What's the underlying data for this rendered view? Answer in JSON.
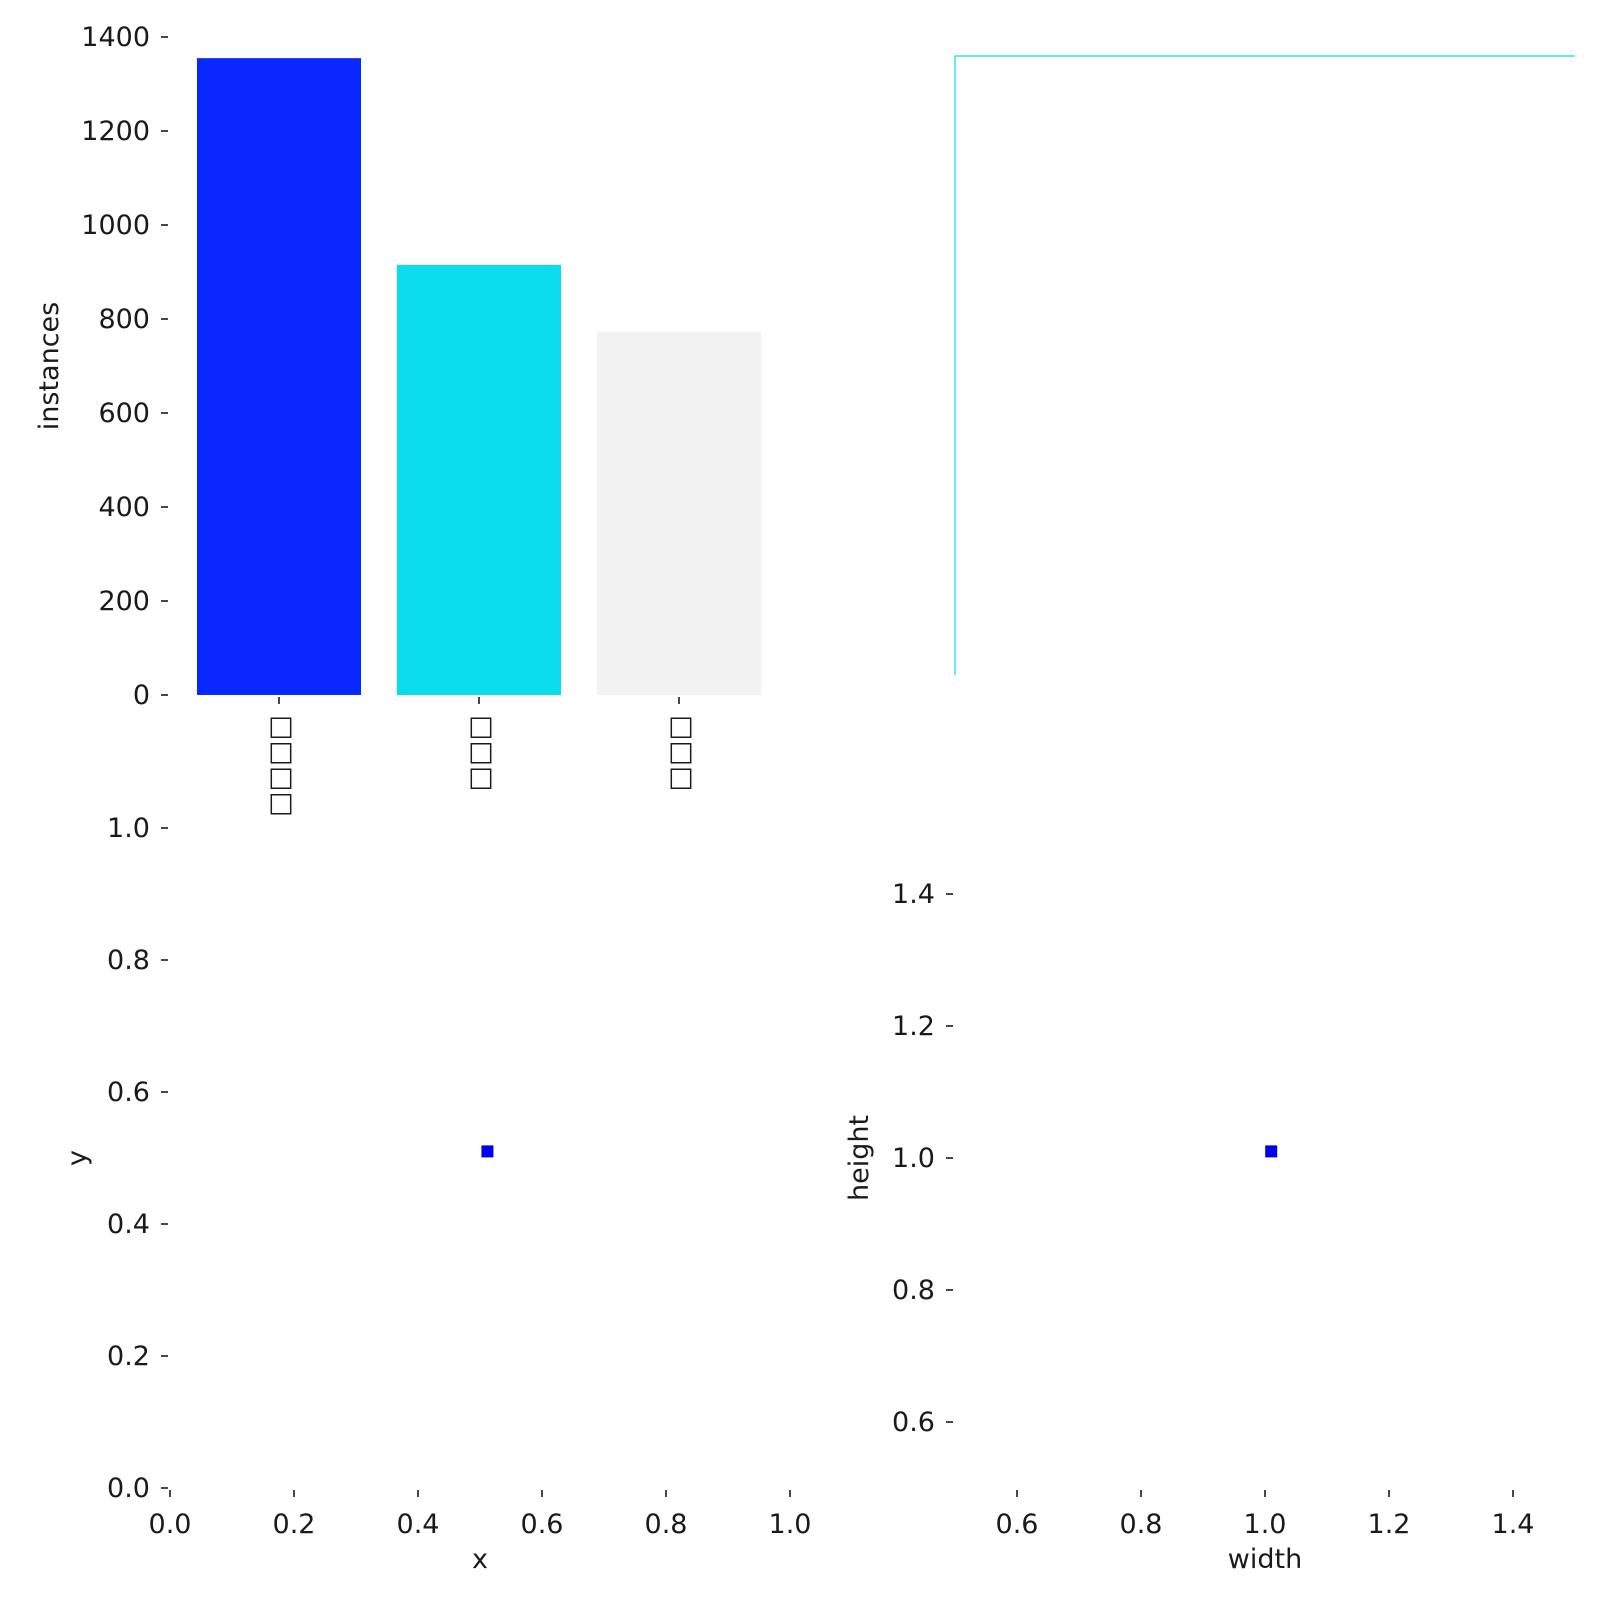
{
  "chart_data": [
    {
      "type": "bar",
      "categories": [
        "□□□□",
        "□□□",
        "□□□"
      ],
      "values": [
        1355,
        915,
        772
      ],
      "colors": [
        "#0828fe",
        "#0adde9",
        "#f2f2f2"
      ],
      "ylabel": "instances",
      "ylim": [
        0,
        1400
      ],
      "yticks": [
        "0",
        "200",
        "400",
        "600",
        "800",
        "1000",
        "1200",
        "1400"
      ],
      "grid": false
    },
    {
      "type": "line",
      "series": [
        {
          "color": "#0adde9",
          "x": [
            0.5,
            0.5,
            1.0
          ],
          "y": [
            0.0,
            1.0,
            1.0
          ]
        }
      ],
      "note_axes_hidden": true
    },
    {
      "type": "scatter",
      "x": [
        0.512
      ],
      "y": [
        0.51
      ],
      "color": "#0000ee",
      "xlabel": "x",
      "ylabel": "y",
      "xlim": [
        0,
        1
      ],
      "ylim": [
        0,
        1
      ],
      "xticks": [
        "0.0",
        "0.2",
        "0.4",
        "0.6",
        "0.8",
        "1.0"
      ],
      "yticks": [
        "0.0",
        "0.2",
        "0.4",
        "0.6",
        "0.8",
        "1.0"
      ],
      "grid": false
    },
    {
      "type": "scatter",
      "x": [
        1.01
      ],
      "y": [
        1.01
      ],
      "color": "#0000ee",
      "xlabel": "width",
      "ylabel": "height",
      "xlim": [
        0.5,
        1.5
      ],
      "ylim": [
        0.5,
        1.5
      ],
      "xticks": [
        "0.6",
        "0.8",
        "1.0",
        "1.2",
        "1.4"
      ],
      "yticks": [
        "0.6",
        "0.8",
        "1.0",
        "1.2",
        "1.4"
      ],
      "grid": false
    }
  ]
}
